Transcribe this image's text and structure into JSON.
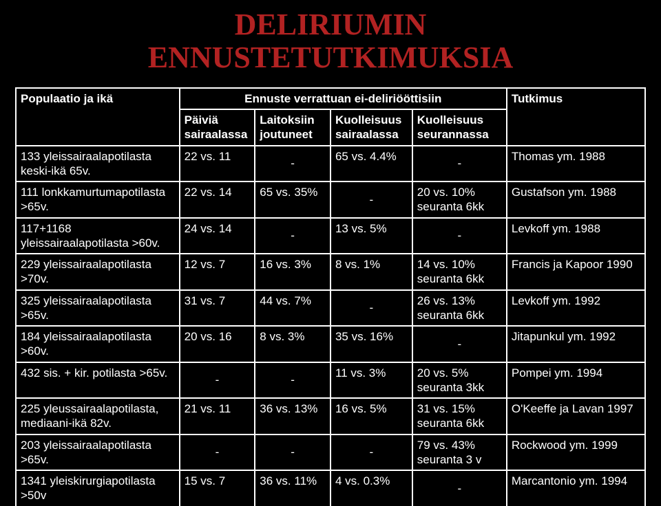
{
  "title_line1": "DELIRIUMIN",
  "title_line2": "ENNUSTETUTKIMUKSIA",
  "header": {
    "col0": "Populaatio ja ikä",
    "group": "Ennuste verrattuan ei-deliriööttisiin",
    "sub1": "Päiviä sairaalassa",
    "sub2": "Laitoksiin joutuneet",
    "sub3": "Kuolleisuus sairaalassa",
    "sub4": "Kuolleisuus seurannassa",
    "col5": "Tutkimus"
  },
  "rows": [
    {
      "c0": "133 yleissairaalapotilasta keski-ikä 65v.",
      "c1": "22 vs. 11",
      "c2": "-",
      "c3": "65 vs. 4.4%",
      "c4": "-",
      "c5": "Thomas ym. 1988"
    },
    {
      "c0": "111 lonkkamurtumapotilasta >65v.",
      "c1": "22 vs. 14",
      "c2": "65 vs. 35%",
      "c3": "-",
      "c4": "20 vs. 10% seuranta 6kk",
      "c5": "Gustafson ym. 1988"
    },
    {
      "c0": "117+1168 yleissairaalapotilasta >60v.",
      "c1": "24 vs. 14",
      "c2": "-",
      "c3": "13 vs. 5%",
      "c4": "-",
      "c5": "Levkoff ym. 1988"
    },
    {
      "c0": "229 yleissairaalapotilasta >70v.",
      "c1": "12 vs. 7",
      "c2": "16 vs. 3%",
      "c3": "8 vs. 1%",
      "c4": "14 vs. 10% seuranta 6kk",
      "c5": "Francis ja Kapoor 1990"
    },
    {
      "c0": "325 yleissairaalapotilasta >65v.",
      "c1": "31 vs. 7",
      "c2": "44 vs. 7%",
      "c3": "-",
      "c4": "26 vs. 13% seuranta 6kk",
      "c5": "Levkoff ym. 1992"
    },
    {
      "c0": "184 yleissairaalapotilasta >60v.",
      "c1": "20 vs. 16",
      "c2": "8 vs. 3%",
      "c3": "35 vs. 16%",
      "c4": "-",
      "c5": "Jitapunkul ym. 1992"
    },
    {
      "c0": "432 sis. + kir. potilasta >65v.",
      "c1": "-",
      "c2": "-",
      "c3": "11 vs. 3%",
      "c4": "20 vs. 5% seuranta 3kk",
      "c5": "Pompei ym. 1994"
    },
    {
      "c0": "225 yleussairaalapotilasta, mediaani-ikä 82v.",
      "c1": "21 vs. 11",
      "c2": "36 vs. 13%",
      "c3": "16 vs. 5%",
      "c4": "31 vs. 15% seuranta 6kk",
      "c5": "O'Keeffe ja Lavan 1997"
    },
    {
      "c0": "203 yleissairaalapotilasta >65v.",
      "c1": "-",
      "c2": "-",
      "c3": "-",
      "c4": "79 vs. 43% seuranta 3 v",
      "c5": "Rockwood ym. 1999"
    },
    {
      "c0": "1341 yleiskirurgiapotilasta >50v",
      "c1": "15 vs. 7",
      "c2": "36 vs. 11%",
      "c3": "4 vs. 0.3%",
      "c4": "-",
      "c5": "Marcantonio ym. 1994"
    }
  ]
}
